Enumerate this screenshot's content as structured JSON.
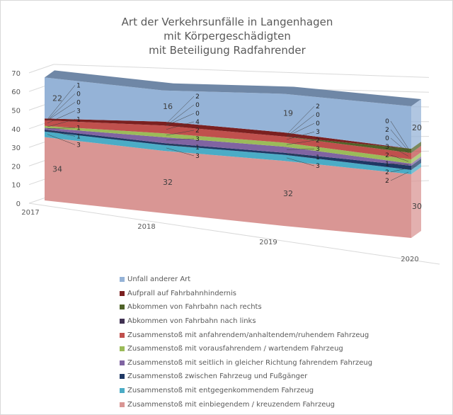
{
  "chart_data": {
    "type": "area",
    "stacked": true,
    "three_d": true,
    "title": "Art der Verkehrsunfälle in Langenhagen\nmit Körpergeschädigten\nmit Beteiligung Radfahrender",
    "title_lines": [
      "Art der Verkehrsunfälle in Langenhagen",
      "mit Körpergeschädigten",
      "mit Beteiligung Radfahrender"
    ],
    "categories": [
      "2017",
      "2018",
      "2019",
      "2020"
    ],
    "ylim": [
      0,
      70
    ],
    "yticks": [
      "0",
      "10",
      "20",
      "30",
      "40",
      "50",
      "60",
      "70"
    ],
    "grid": true,
    "legend_position": "bottom",
    "series": [
      {
        "name": "Zusammenstoß mit einbiegendem / kreuzendem Fahrzeug",
        "color": "#d99694",
        "values": [
          34,
          32,
          32,
          30
        ]
      },
      {
        "name": "Zusammenstoß mit entgegenkommendem Fahrzeug",
        "color": "#4bacc6",
        "values": [
          3,
          3,
          3,
          2
        ]
      },
      {
        "name": "Zusammenstoß zwischen Fahrzeug und Fußgänger",
        "color": "#1f3864",
        "values": [
          1,
          1,
          1,
          2
        ]
      },
      {
        "name": "Zusammenstoß mit seitlich in gleicher Richtung fahrendem Fahrzeug",
        "color": "#8064a2",
        "values": [
          1,
          3,
          3,
          1
        ]
      },
      {
        "name": "Zusammenstoß mit vorausfahrendem / wartendem Fahrzeug",
        "color": "#9bbb59",
        "values": [
          1,
          2,
          2,
          2
        ]
      },
      {
        "name": "Zusammenstoß mit anfahrendem/anhaltendem/ruhendem Fahrzeug",
        "color": "#c0504d",
        "values": [
          3,
          4,
          3,
          3
        ]
      },
      {
        "name": "Abkommen von Fahrbahn nach links",
        "color": "#403152",
        "values": [
          0,
          0,
          0,
          0
        ]
      },
      {
        "name": "Abkommen von Fahrbahn nach rechts",
        "color": "#4f6228",
        "values": [
          0,
          0,
          0,
          2
        ]
      },
      {
        "name": "Aufprall auf Fahrbahnhindernis",
        "color": "#7b2020",
        "values": [
          1,
          2,
          2,
          0
        ]
      },
      {
        "name": "Unfall anderer Art",
        "color": "#95b3d7",
        "values": [
          22,
          16,
          19,
          20
        ]
      }
    ]
  }
}
